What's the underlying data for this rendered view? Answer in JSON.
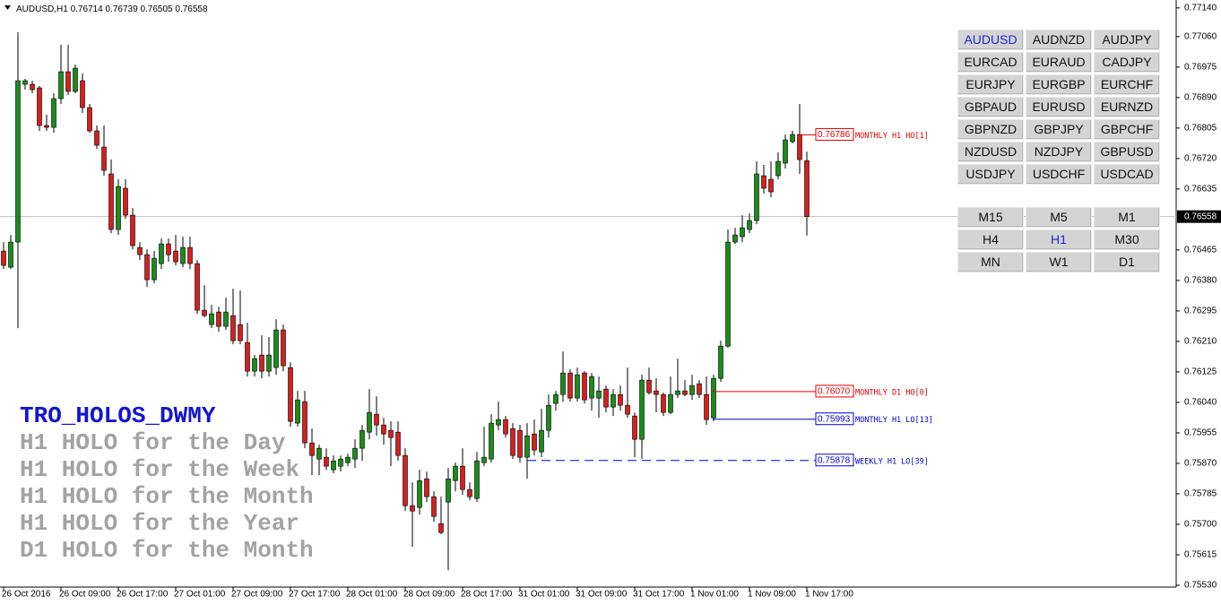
{
  "chart_data": {
    "type": "candlestick",
    "symbol": "AUDUSD,H1",
    "up_color": "#1a8c1a",
    "down_color": "#d42020",
    "categories": [
      "26 Oct 2016",
      null,
      null,
      null,
      null,
      null,
      null,
      null,
      "26 Oct 09:00",
      null,
      null,
      null,
      null,
      null,
      null,
      null,
      "26 Oct 17:00",
      null,
      null,
      null,
      null,
      null,
      null,
      null,
      "27 Oct 01:00",
      null,
      null,
      null,
      null,
      null,
      null,
      null,
      "27 Oct 09:00",
      null,
      null,
      null,
      null,
      null,
      null,
      null,
      "27 Oct 17:00",
      null,
      null,
      null,
      null,
      null,
      null,
      null,
      "28 Oct 01:00",
      null,
      null,
      null,
      null,
      null,
      null,
      null,
      "28 Oct 09:00",
      null,
      null,
      null,
      null,
      null,
      null,
      null,
      "28 Oct 17:00",
      null,
      null,
      null,
      null,
      null,
      null,
      null,
      "31 Oct 01:00",
      null,
      null,
      null,
      null,
      null,
      null,
      null,
      "31 Oct 09:00",
      null,
      null,
      null,
      null,
      null,
      null,
      null,
      "31 Oct 17:00",
      null,
      null,
      null,
      null,
      null,
      null,
      null,
      "1 Nov 01:00",
      null,
      null,
      null,
      null,
      null,
      null,
      null,
      "1 Nov 09:00",
      null,
      null,
      null,
      null,
      null,
      null,
      null,
      "1 Nov 17:00"
    ],
    "open": [
      0.76462,
      0.76417,
      0.76487,
      0.76927,
      0.76927,
      0.76917,
      0.76812,
      0.76807,
      0.76887,
      0.76962,
      0.76907,
      0.76937,
      0.76862,
      0.76797,
      0.76752,
      0.76677,
      0.76522,
      0.76637,
      0.76562,
      0.76472,
      0.76452,
      0.76382,
      0.76427,
      0.76482,
      0.76462,
      0.76427,
      0.76472,
      0.76427,
      0.76297,
      0.76257,
      0.76292,
      0.76252,
      0.76282,
      0.76257,
      0.76207,
      0.76127,
      0.76172,
      0.76127,
      0.76137,
      0.76242,
      0.76137,
      0.75982,
      0.76042,
      0.75927,
      0.75882,
      0.75887,
      0.75852,
      0.75862,
      0.75872,
      0.75882,
      0.75912,
      0.75957,
      0.76007,
      0.75977,
      0.75962,
      0.75957,
      0.75892,
      0.75752,
      0.75747,
      0.75827,
      0.75777,
      0.75702,
      0.75762,
      0.75822,
      0.75862,
      0.75797,
      0.75772,
      0.75872,
      0.75882,
      0.75977,
      0.75992,
      0.75967,
      0.75962,
      0.75887,
      0.75952,
      0.75902,
      0.75962,
      0.76037,
      0.76062,
      0.76122,
      0.76052,
      0.76122,
      0.76052,
      0.76052,
      0.76077,
      0.76027,
      0.76062,
      0.76032,
      0.76002,
      0.75937,
      0.76102,
      0.76072,
      0.76062,
      0.76012,
      0.76062,
      0.76072,
      0.76062,
      0.76092,
      0.76062,
      0.75997,
      0.76107,
      0.76197,
      0.76487,
      0.76502,
      0.76522,
      0.76547,
      0.76672,
      0.76662,
      0.76672,
      0.76707,
      0.76767,
      0.76787,
      0.76714
    ],
    "high": [
      0.76487,
      0.76507,
      0.77072,
      0.76942,
      0.76937,
      0.76922,
      0.76842,
      0.76902,
      0.77037,
      0.77037,
      0.76982,
      0.76957,
      0.76872,
      0.76812,
      0.76812,
      0.76717,
      0.76662,
      0.76662,
      0.76582,
      0.76487,
      0.76467,
      0.76462,
      0.76497,
      0.76497,
      0.76507,
      0.76502,
      0.76502,
      0.76437,
      0.76367,
      0.76312,
      0.76307,
      0.76332,
      0.76357,
      0.76352,
      0.76262,
      0.76172,
      0.76227,
      0.76222,
      0.76272,
      0.76257,
      0.76152,
      0.76072,
      0.76072,
      0.75967,
      0.75922,
      0.75912,
      0.75892,
      0.75892,
      0.75897,
      0.75937,
      0.75977,
      0.76077,
      0.76057,
      0.75997,
      0.75987,
      0.75987,
      0.75912,
      0.75817,
      0.75852,
      0.75847,
      0.75792,
      0.75777,
      0.75857,
      0.75872,
      0.75912,
      0.75817,
      0.75902,
      0.75972,
      0.76007,
      0.76042,
      0.76002,
      0.75982,
      0.75977,
      0.75982,
      0.75992,
      0.76022,
      0.76062,
      0.76072,
      0.76182,
      0.76132,
      0.76137,
      0.76127,
      0.76122,
      0.76112,
      0.76087,
      0.76077,
      0.76087,
      0.76137,
      0.76012,
      0.76117,
      0.76137,
      0.76107,
      0.76067,
      0.76112,
      0.76162,
      0.76102,
      0.76117,
      0.76102,
      0.76112,
      0.76117,
      0.76212,
      0.76522,
      0.76527,
      0.76562,
      0.76567,
      0.76712,
      0.76702,
      0.76712,
      0.76737,
      0.76787,
      0.76797,
      0.76872,
      0.76739
    ],
    "low": [
      0.76412,
      0.76412,
      0.76247,
      0.76912,
      0.76902,
      0.76797,
      0.76797,
      0.76792,
      0.76872,
      0.76897,
      0.76902,
      0.76847,
      0.76792,
      0.76747,
      0.76672,
      0.76512,
      0.76507,
      0.76552,
      0.76467,
      0.76437,
      0.76362,
      0.76372,
      0.76412,
      0.76432,
      0.76422,
      0.76417,
      0.76412,
      0.76287,
      0.76277,
      0.76247,
      0.76237,
      0.76242,
      0.76202,
      0.76202,
      0.76112,
      0.76112,
      0.76107,
      0.76112,
      0.76117,
      0.76127,
      0.75972,
      0.75972,
      0.75912,
      0.75837,
      0.75837,
      0.75852,
      0.75842,
      0.75847,
      0.75862,
      0.75857,
      0.75877,
      0.75937,
      0.75947,
      0.75922,
      0.75862,
      0.75877,
      0.75737,
      0.75637,
      0.75727,
      0.75762,
      0.75707,
      0.75672,
      0.75572,
      0.75792,
      0.75782,
      0.75767,
      0.75762,
      0.75862,
      0.75872,
      0.75962,
      0.75942,
      0.75882,
      0.75872,
      0.75827,
      0.75892,
      0.75887,
      0.75942,
      0.76017,
      0.76042,
      0.76042,
      0.76042,
      0.76037,
      0.76017,
      0.75997,
      0.76012,
      0.76002,
      0.76017,
      0.75997,
      0.75887,
      0.75882,
      0.76062,
      0.76012,
      0.76002,
      0.76007,
      0.76052,
      0.76057,
      0.76047,
      0.76052,
      0.75977,
      0.75987,
      0.76097,
      0.76192,
      0.76482,
      0.76487,
      0.76512,
      0.76537,
      0.76622,
      0.76612,
      0.76662,
      0.76692,
      0.76762,
      0.76677,
      0.76505
    ],
    "close": [
      0.76422,
      0.76487,
      0.76937,
      0.76937,
      0.76912,
      0.76812,
      0.76807,
      0.76887,
      0.76962,
      0.76907,
      0.76972,
      0.76862,
      0.76797,
      0.76757,
      0.76687,
      0.76522,
      0.76642,
      0.76562,
      0.76477,
      0.76452,
      0.76382,
      0.76442,
      0.76482,
      0.76452,
      0.76432,
      0.76472,
      0.76427,
      0.76297,
      0.76282,
      0.76287,
      0.76252,
      0.76292,
      0.76212,
      0.76212,
      0.76127,
      0.76162,
      0.76127,
      0.76172,
      0.76242,
      0.76142,
      0.75987,
      0.76047,
      0.75927,
      0.75892,
      0.75912,
      0.75862,
      0.75877,
      0.75882,
      0.75887,
      0.75912,
      0.75962,
      0.76012,
      0.75977,
      0.75952,
      0.75942,
      0.75892,
      0.75752,
      0.75737,
      0.75822,
      0.75777,
      0.75722,
      0.75677,
      0.75827,
      0.75862,
      0.75797,
      0.75777,
      0.75877,
      0.75887,
      0.75982,
      0.75992,
      0.75952,
      0.75892,
      0.75887,
      0.75947,
      0.75907,
      0.75962,
      0.76032,
      0.76062,
      0.76122,
      0.76052,
      0.76117,
      0.76047,
      0.76112,
      0.76072,
      0.76027,
      0.76062,
      0.76032,
      0.76007,
      0.75937,
      0.76102,
      0.76067,
      0.76062,
      0.76012,
      0.76062,
      0.76072,
      0.76062,
      0.76087,
      0.76062,
      0.75992,
      0.76107,
      0.76197,
      0.76487,
      0.76507,
      0.76527,
      0.76547,
      0.76677,
      0.76637,
      0.76627,
      0.76712,
      0.76772,
      0.76787,
      0.76717,
      0.76558
    ],
    "ylim": [
      0.75525,
      0.77162
    ],
    "yticks": [
      {
        "value": 0.7714,
        "label": "0.77140"
      },
      {
        "value": 0.7706,
        "label": "0.77060"
      },
      0.76975,
      {
        "value": 0.7689,
        "label": "0.76890"
      },
      0.76805,
      {
        "value": 0.7672,
        "label": "0.76720"
      },
      0.76635,
      0.76465,
      {
        "value": 0.7638,
        "label": "0.76380"
      },
      0.76295,
      {
        "value": 0.7621,
        "label": "0.76210"
      },
      0.76125,
      {
        "value": 0.7604,
        "label": "0.76040"
      },
      0.75955,
      {
        "value": 0.7587,
        "label": "0.75870"
      },
      0.75785,
      {
        "value": 0.757,
        "label": "0.75700"
      },
      0.75615,
      {
        "value": 0.7553,
        "label": "0.75530"
      }
    ],
    "grid": false,
    "levels": {
      "values": [
        0.76786,
        0.7607,
        0.75993,
        0.75878
      ],
      "value_labels": [
        "0.76786",
        "0.76070",
        "0.75993",
        "0.75878"
      ],
      "names": [
        "MONTHLY H1 HO[1]",
        "MONTHLY D1 HO[0]",
        "MONTHLY H1 LO[13]",
        "WEEKLY H1 LO[39]"
      ],
      "colors": [
        "#e00000",
        "#e00000",
        "#0000c8",
        "#0000c8"
      ],
      "styles": [
        "solid",
        "solid",
        "solid",
        "dashed"
      ]
    }
  },
  "overlay": {
    "title": "TRO_HOLOS_DWMY",
    "lines": [
      "H1 HOLO for the Day",
      "H1 HOLO for the Week",
      "H1 HOLO for the Month",
      "H1 HOLO for the Year",
      "D1 HOLO for the Month"
    ]
  },
  "symbol_buttons": [
    {
      "label": "AUDUSD",
      "active": true
    },
    {
      "label": "AUDNZD"
    },
    {
      "label": "AUDJPY"
    },
    {
      "label": "EURCAD"
    },
    {
      "label": "EURAUD"
    },
    {
      "label": "CADJPY"
    },
    {
      "label": "EURJPY"
    },
    {
      "label": "EURGBP"
    },
    {
      "label": "EURCHF"
    },
    {
      "label": "GBPAUD"
    },
    {
      "label": "EURUSD"
    },
    {
      "label": "EURNZD"
    },
    {
      "label": "GBPNZD"
    },
    {
      "label": "GBPJPY"
    },
    {
      "label": "GBPCHF"
    },
    {
      "label": "NZDUSD"
    },
    {
      "label": "NZDJPY"
    },
    {
      "label": "GBPUSD"
    },
    {
      "label": "USDJPY"
    },
    {
      "label": "USDCHF"
    },
    {
      "label": "USDCAD"
    }
  ],
  "timeframe_buttons": [
    {
      "label": "M15"
    },
    {
      "label": "M5"
    },
    {
      "label": "M1"
    },
    {
      "label": "H4"
    },
    {
      "label": "H1",
      "active": true
    },
    {
      "label": "M30"
    },
    {
      "label": "MN"
    },
    {
      "label": "W1"
    },
    {
      "label": "D1"
    }
  ]
}
